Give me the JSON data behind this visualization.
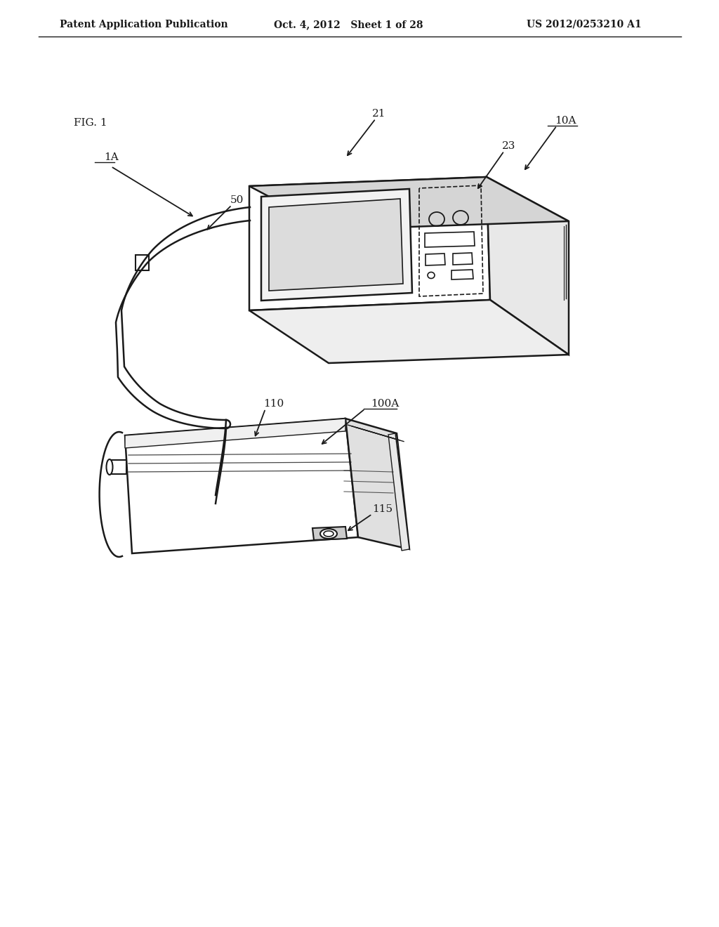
{
  "header_left": "Patent Application Publication",
  "header_mid": "Oct. 4, 2012   Sheet 1 of 28",
  "header_right": "US 2012/0253210 A1",
  "fig_label": "FIG. 1",
  "label_1A": "1A",
  "label_10A": "10A",
  "label_21": "21",
  "label_23": "23",
  "label_50": "50",
  "label_100A": "100A",
  "label_110": "110",
  "label_115": "115",
  "bg_color": "#ffffff",
  "line_color": "#1a1a1a",
  "text_color": "#1a1a1a",
  "header_fontsize": 10,
  "label_fontsize": 11,
  "figlabel_fontsize": 11
}
